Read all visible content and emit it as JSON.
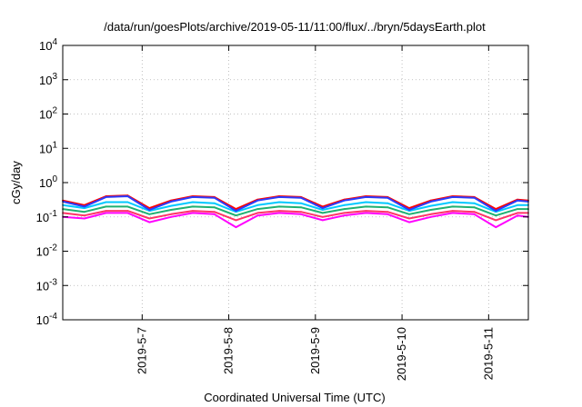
{
  "chart_data": {
    "type": "line",
    "title": "/data/run/goesPlots/archive/2019-05-11/11:00/flux/../bryn/5daysEarth.plot",
    "xlabel": "Coordinated Universal Time (UTC)",
    "ylabel": "cGy/day",
    "yscale": "log",
    "ylim": [
      0.0001,
      10000
    ],
    "xlim": [
      "2019-05-06 02:00",
      "2019-05-11 11:00"
    ],
    "grid": true,
    "y_ticks": [
      {
        "base": "10",
        "exp": "-4"
      },
      {
        "base": "10",
        "exp": "-3"
      },
      {
        "base": "10",
        "exp": "-2"
      },
      {
        "base": "10",
        "exp": "-1"
      },
      {
        "base": "10",
        "exp": "0"
      },
      {
        "base": "10",
        "exp": "1"
      },
      {
        "base": "10",
        "exp": "2"
      },
      {
        "base": "10",
        "exp": "3"
      },
      {
        "base": "10",
        "exp": "4"
      }
    ],
    "x_ticks": [
      "2019-5-7",
      "2019-5-8",
      "2019-5-9",
      "2019-5-10",
      "2019-5-11"
    ],
    "series_colors": [
      "#ff00ff",
      "#ff3366",
      "#20b070",
      "#00c8ff",
      "#ff0000",
      "#2a3cff"
    ],
    "series": [
      {
        "color": "#ff00ff",
        "x": [
          "2019-05-06 02:00",
          "2019-05-06 08:00",
          "2019-05-06 14:00",
          "2019-05-06 20:00",
          "2019-05-07 02:00",
          "2019-05-07 08:00",
          "2019-05-07 14:00",
          "2019-05-07 20:00",
          "2019-05-08 02:00",
          "2019-05-08 08:00",
          "2019-05-08 14:00",
          "2019-05-08 20:00",
          "2019-05-09 02:00",
          "2019-05-09 08:00",
          "2019-05-09 14:00",
          "2019-05-09 20:00",
          "2019-05-10 02:00",
          "2019-05-10 08:00",
          "2019-05-10 14:00",
          "2019-05-10 20:00",
          "2019-05-11 02:00",
          "2019-05-11 08:00",
          "2019-05-11 11:00"
        ],
        "values": [
          0.1,
          0.09,
          0.13,
          0.13,
          0.07,
          0.1,
          0.13,
          0.12,
          0.05,
          0.11,
          0.13,
          0.12,
          0.08,
          0.11,
          0.13,
          0.12,
          0.07,
          0.1,
          0.13,
          0.12,
          0.05,
          0.11,
          0.1
        ]
      },
      {
        "color": "#ff3366",
        "x": [
          "2019-05-06 02:00",
          "2019-05-06 08:00",
          "2019-05-06 14:00",
          "2019-05-06 20:00",
          "2019-05-07 02:00",
          "2019-05-07 08:00",
          "2019-05-07 14:00",
          "2019-05-07 20:00",
          "2019-05-08 02:00",
          "2019-05-08 08:00",
          "2019-05-08 14:00",
          "2019-05-08 20:00",
          "2019-05-09 02:00",
          "2019-05-09 08:00",
          "2019-05-09 14:00",
          "2019-05-09 20:00",
          "2019-05-10 02:00",
          "2019-05-10 08:00",
          "2019-05-10 14:00",
          "2019-05-10 20:00",
          "2019-05-11 02:00",
          "2019-05-11 08:00",
          "2019-05-11 11:00"
        ],
        "values": [
          0.13,
          0.11,
          0.15,
          0.15,
          0.09,
          0.12,
          0.15,
          0.14,
          0.08,
          0.13,
          0.15,
          0.14,
          0.1,
          0.13,
          0.15,
          0.14,
          0.09,
          0.12,
          0.15,
          0.14,
          0.08,
          0.13,
          0.13
        ]
      },
      {
        "color": "#20b070",
        "x": [
          "2019-05-06 02:00",
          "2019-05-06 08:00",
          "2019-05-06 14:00",
          "2019-05-06 20:00",
          "2019-05-07 02:00",
          "2019-05-07 08:00",
          "2019-05-07 14:00",
          "2019-05-07 20:00",
          "2019-05-08 02:00",
          "2019-05-08 08:00",
          "2019-05-08 14:00",
          "2019-05-08 20:00",
          "2019-05-09 02:00",
          "2019-05-09 08:00",
          "2019-05-09 14:00",
          "2019-05-09 20:00",
          "2019-05-10 02:00",
          "2019-05-10 08:00",
          "2019-05-10 14:00",
          "2019-05-10 20:00",
          "2019-05-11 02:00",
          "2019-05-11 08:00",
          "2019-05-11 11:00"
        ],
        "values": [
          0.17,
          0.14,
          0.2,
          0.2,
          0.12,
          0.16,
          0.2,
          0.19,
          0.11,
          0.17,
          0.2,
          0.19,
          0.13,
          0.17,
          0.2,
          0.19,
          0.12,
          0.16,
          0.2,
          0.19,
          0.11,
          0.17,
          0.17
        ]
      },
      {
        "color": "#00c8ff",
        "x": [
          "2019-05-06 02:00",
          "2019-05-06 08:00",
          "2019-05-06 14:00",
          "2019-05-06 20:00",
          "2019-05-07 02:00",
          "2019-05-07 08:00",
          "2019-05-07 14:00",
          "2019-05-07 20:00",
          "2019-05-08 02:00",
          "2019-05-08 08:00",
          "2019-05-08 14:00",
          "2019-05-08 20:00",
          "2019-05-09 02:00",
          "2019-05-09 08:00",
          "2019-05-09 14:00",
          "2019-05-09 20:00",
          "2019-05-10 02:00",
          "2019-05-10 08:00",
          "2019-05-10 14:00",
          "2019-05-10 20:00",
          "2019-05-11 02:00",
          "2019-05-11 08:00",
          "2019-05-11 11:00"
        ],
        "values": [
          0.22,
          0.18,
          0.27,
          0.27,
          0.15,
          0.21,
          0.27,
          0.25,
          0.14,
          0.22,
          0.27,
          0.25,
          0.16,
          0.22,
          0.27,
          0.25,
          0.15,
          0.21,
          0.27,
          0.25,
          0.14,
          0.22,
          0.22
        ]
      },
      {
        "color": "#ff0000",
        "x": [
          "2019-05-06 02:00",
          "2019-05-06 08:00",
          "2019-05-06 14:00",
          "2019-05-06 20:00",
          "2019-05-07 02:00",
          "2019-05-07 08:00",
          "2019-05-07 14:00",
          "2019-05-07 20:00",
          "2019-05-08 02:00",
          "2019-05-08 08:00",
          "2019-05-08 14:00",
          "2019-05-08 20:00",
          "2019-05-09 02:00",
          "2019-05-09 08:00",
          "2019-05-09 14:00",
          "2019-05-09 20:00",
          "2019-05-10 02:00",
          "2019-05-10 08:00",
          "2019-05-10 14:00",
          "2019-05-10 20:00",
          "2019-05-11 02:00",
          "2019-05-11 08:00",
          "2019-05-11 11:00"
        ],
        "values": [
          0.3,
          0.22,
          0.4,
          0.42,
          0.18,
          0.3,
          0.4,
          0.38,
          0.17,
          0.32,
          0.4,
          0.38,
          0.2,
          0.32,
          0.4,
          0.38,
          0.18,
          0.3,
          0.4,
          0.38,
          0.17,
          0.32,
          0.3
        ]
      },
      {
        "color": "#2a3cff",
        "x": [
          "2019-05-06 02:00",
          "2019-05-06 08:00",
          "2019-05-06 14:00",
          "2019-05-06 20:00",
          "2019-05-07 02:00",
          "2019-05-07 08:00",
          "2019-05-07 14:00",
          "2019-05-07 20:00",
          "2019-05-08 02:00",
          "2019-05-08 08:00",
          "2019-05-08 14:00",
          "2019-05-08 20:00",
          "2019-05-09 02:00",
          "2019-05-09 08:00",
          "2019-05-09 14:00",
          "2019-05-09 20:00",
          "2019-05-10 02:00",
          "2019-05-10 08:00",
          "2019-05-10 14:00",
          "2019-05-10 20:00",
          "2019-05-11 02:00",
          "2019-05-11 08:00",
          "2019-05-11 11:00"
        ],
        "values": [
          0.28,
          0.2,
          0.38,
          0.4,
          0.16,
          0.28,
          0.38,
          0.36,
          0.15,
          0.3,
          0.38,
          0.36,
          0.18,
          0.3,
          0.38,
          0.36,
          0.16,
          0.28,
          0.38,
          0.36,
          0.15,
          0.3,
          0.28
        ]
      }
    ]
  }
}
